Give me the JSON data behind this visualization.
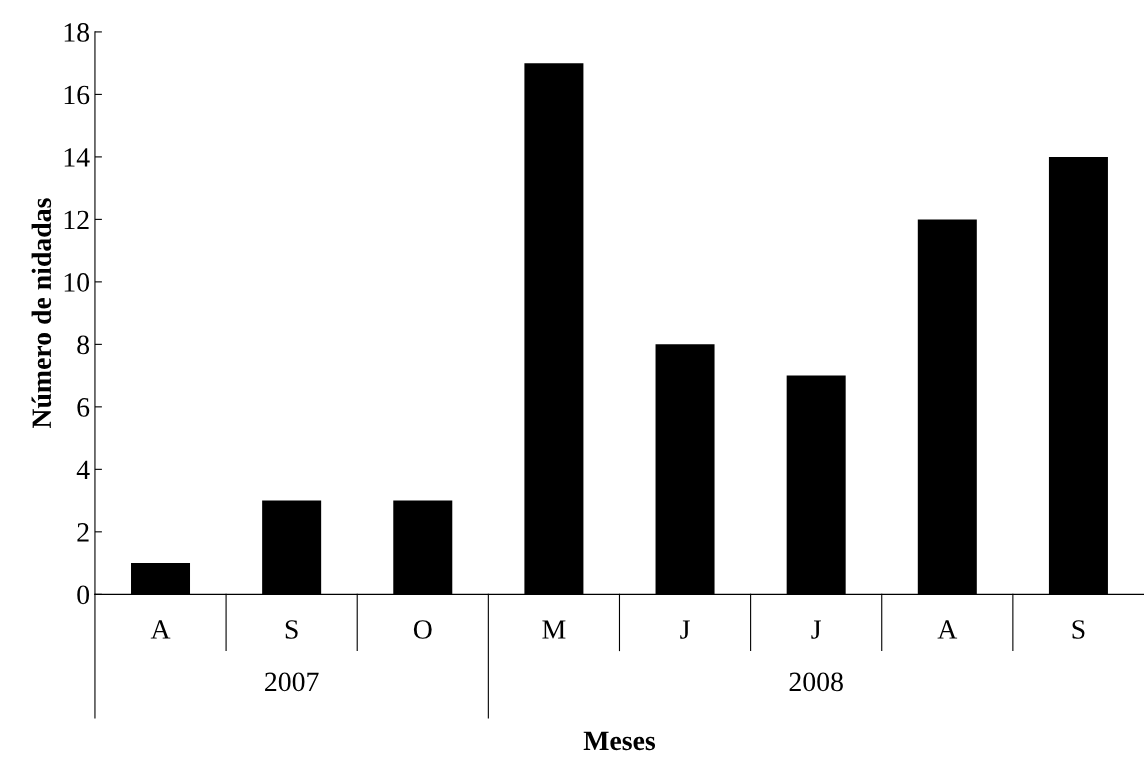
{
  "chart_data": {
    "type": "bar",
    "xlabel": "Meses",
    "ylabel": "Número de nidadas",
    "categories": [
      "A",
      "S",
      "O",
      "M",
      "J",
      "J",
      "A",
      "S"
    ],
    "values": [
      1,
      3,
      3,
      17,
      8,
      7,
      12,
      14
    ],
    "color": "#000000",
    "ylim": [
      0,
      18
    ],
    "yticks": [
      0,
      2,
      4,
      6,
      8,
      10,
      12,
      14,
      16,
      18
    ],
    "grid": false,
    "annotations": [
      "2007",
      "2008"
    ]
  }
}
